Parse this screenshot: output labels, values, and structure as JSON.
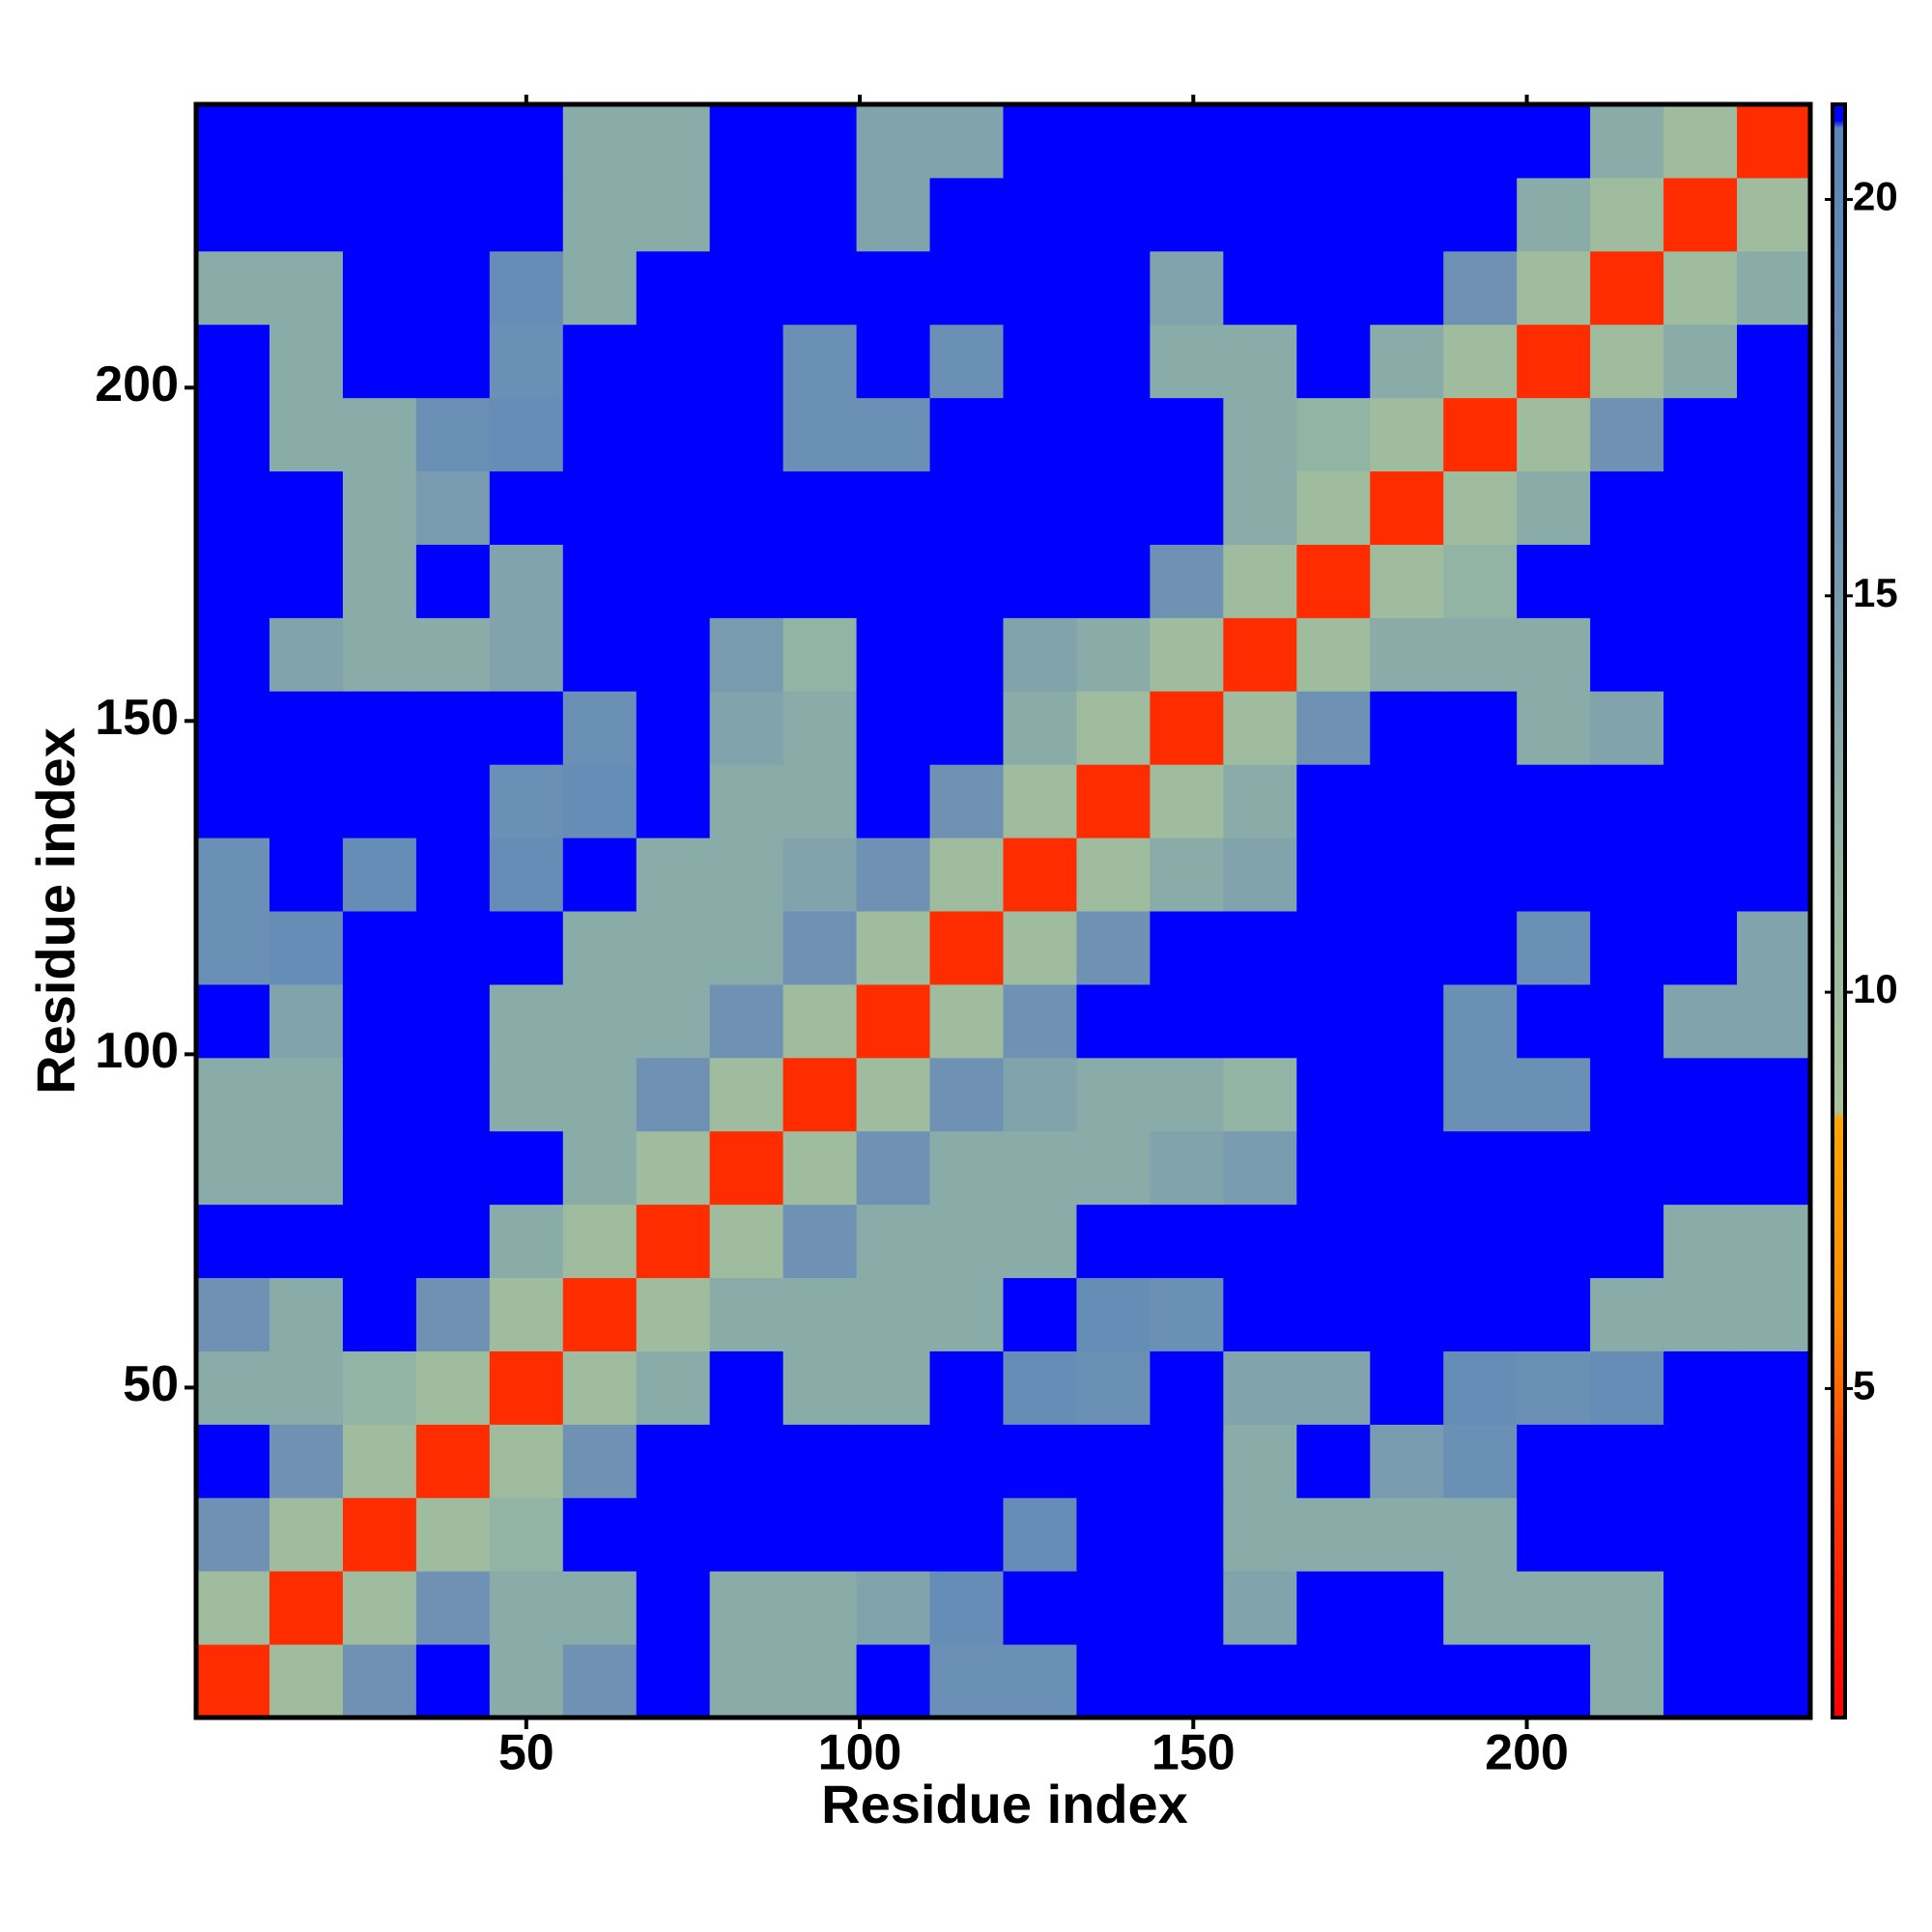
{
  "chart_data": {
    "type": "heatmap",
    "xlabel": "Residue index",
    "ylabel": "Residue index",
    "xlim": [
      0.5,
      242.5
    ],
    "ylim": [
      0.5,
      242.5
    ],
    "xticks": [
      50,
      100,
      150,
      200
    ],
    "yticks": [
      50,
      100,
      150,
      200
    ],
    "xbins": [
      0.5,
      11.5,
      22.5,
      33.5,
      44.5,
      55.5,
      66.5,
      77.5,
      88.5,
      99.5,
      110.5,
      121.5,
      132.5,
      143.5,
      154.5,
      165.5,
      176.5,
      187.5,
      198.5,
      209.5,
      220.5,
      231.5,
      242.5
    ],
    "ybins": [
      0.5,
      11.5,
      22.5,
      33.5,
      44.5,
      55.5,
      66.5,
      77.5,
      88.5,
      99.5,
      110.5,
      121.5,
      132.5,
      143.5,
      154.5,
      165.5,
      176.5,
      187.5,
      198.5,
      209.5,
      220.5,
      231.5,
      242.5
    ],
    "clim": [
      0.85,
      21.2
    ],
    "cticks": [
      5,
      10,
      15,
      20
    ],
    "colorscale": [
      [
        0.85,
        "#ff0000"
      ],
      [
        4,
        "#ff4000"
      ],
      [
        6,
        "#ff8c00"
      ],
      [
        8.4,
        "#ffa500"
      ],
      [
        8.5,
        "#a8c49a"
      ],
      [
        12,
        "#92b4a4"
      ],
      [
        16,
        "#6f92b4"
      ],
      [
        20.9,
        "#5a86b8"
      ],
      [
        21,
        "#0000ff"
      ]
    ],
    "z": [
      [
        3,
        10,
        16,
        21,
        13,
        16,
        21,
        13,
        13,
        21,
        17,
        17,
        21,
        21,
        21,
        21,
        21,
        21,
        21,
        13,
        21,
        21
      ],
      [
        10,
        3,
        10,
        16,
        13,
        13,
        21,
        13,
        13,
        14,
        18,
        21,
        21,
        21,
        14,
        21,
        21,
        13,
        13,
        13,
        21,
        21
      ],
      [
        16,
        10,
        3,
        10,
        12,
        21,
        21,
        21,
        21,
        21,
        21,
        18,
        21,
        21,
        13,
        13,
        13,
        13,
        21,
        21,
        21,
        21
      ],
      [
        21,
        16,
        10,
        3,
        10,
        16,
        21,
        21,
        21,
        21,
        21,
        21,
        21,
        21,
        13,
        21,
        15,
        17,
        21,
        21,
        21,
        21
      ],
      [
        13,
        13,
        12,
        10,
        3,
        10,
        13,
        21,
        13,
        13,
        21,
        18,
        17,
        21,
        14,
        14,
        21,
        18,
        17,
        18,
        21,
        21
      ],
      [
        16,
        13,
        21,
        16,
        10,
        3,
        10,
        13,
        13,
        13,
        13,
        21,
        18,
        17,
        21,
        21,
        21,
        21,
        21,
        13,
        13,
        13
      ],
      [
        21,
        21,
        21,
        21,
        13,
        10,
        3,
        10,
        16,
        13,
        13,
        13,
        21,
        21,
        21,
        21,
        21,
        21,
        21,
        21,
        13,
        13
      ],
      [
        13,
        13,
        21,
        21,
        21,
        13,
        10,
        3,
        10,
        16,
        13,
        13,
        13,
        14,
        15,
        21,
        21,
        21,
        21,
        21,
        21,
        21
      ],
      [
        13,
        13,
        21,
        21,
        13,
        13,
        16,
        10,
        3,
        10,
        16,
        14,
        13,
        13,
        12,
        21,
        21,
        17,
        17,
        21,
        21,
        21
      ],
      [
        21,
        14,
        21,
        21,
        13,
        13,
        13,
        16,
        10,
        3,
        10,
        16,
        21,
        21,
        21,
        21,
        21,
        17,
        21,
        21,
        14,
        14
      ],
      [
        17,
        18,
        21,
        21,
        21,
        13,
        13,
        13,
        16,
        10,
        3,
        10,
        16,
        21,
        21,
        21,
        21,
        21,
        17,
        21,
        21,
        14
      ],
      [
        17,
        21,
        18,
        21,
        18,
        21,
        13,
        13,
        14,
        16,
        10,
        3,
        10,
        13,
        14,
        21,
        21,
        21,
        21,
        21,
        21,
        21
      ],
      [
        21,
        21,
        21,
        21,
        17,
        18,
        21,
        13,
        13,
        21,
        16,
        10,
        3,
        10,
        13,
        21,
        21,
        21,
        21,
        21,
        21,
        21
      ],
      [
        21,
        21,
        21,
        21,
        21,
        17,
        21,
        14,
        13,
        21,
        21,
        13,
        10,
        3,
        10,
        16,
        21,
        21,
        13,
        14,
        21,
        21
      ],
      [
        21,
        14,
        13,
        13,
        14,
        21,
        21,
        15,
        12,
        21,
        21,
        14,
        13,
        10,
        3,
        10,
        13,
        13,
        13,
        21,
        21,
        21
      ],
      [
        21,
        21,
        13,
        21,
        14,
        21,
        21,
        21,
        21,
        21,
        21,
        21,
        21,
        16,
        10,
        3,
        10,
        12,
        21,
        21,
        21,
        21
      ],
      [
        21,
        21,
        13,
        15,
        21,
        21,
        21,
        21,
        21,
        21,
        21,
        21,
        21,
        21,
        13,
        10,
        3,
        10,
        13,
        21,
        21,
        21
      ],
      [
        21,
        13,
        13,
        17,
        18,
        21,
        21,
        21,
        17,
        17,
        21,
        21,
        21,
        21,
        13,
        12,
        10,
        3,
        10,
        16,
        21,
        21
      ],
      [
        21,
        13,
        21,
        21,
        17,
        21,
        21,
        21,
        17,
        21,
        17,
        21,
        21,
        13,
        13,
        21,
        13,
        10,
        3,
        10,
        13,
        21
      ],
      [
        13,
        13,
        21,
        21,
        18,
        13,
        21,
        21,
        21,
        21,
        21,
        21,
        21,
        14,
        21,
        21,
        21,
        16,
        10,
        3,
        10,
        13
      ],
      [
        21,
        21,
        21,
        21,
        21,
        13,
        13,
        21,
        21,
        14,
        21,
        21,
        21,
        21,
        21,
        21,
        21,
        21,
        13,
        10,
        3,
        10
      ],
      [
        21,
        21,
        21,
        21,
        21,
        13,
        13,
        21,
        21,
        14,
        14,
        21,
        21,
        21,
        21,
        21,
        21,
        21,
        21,
        13,
        10,
        3
      ]
    ]
  }
}
